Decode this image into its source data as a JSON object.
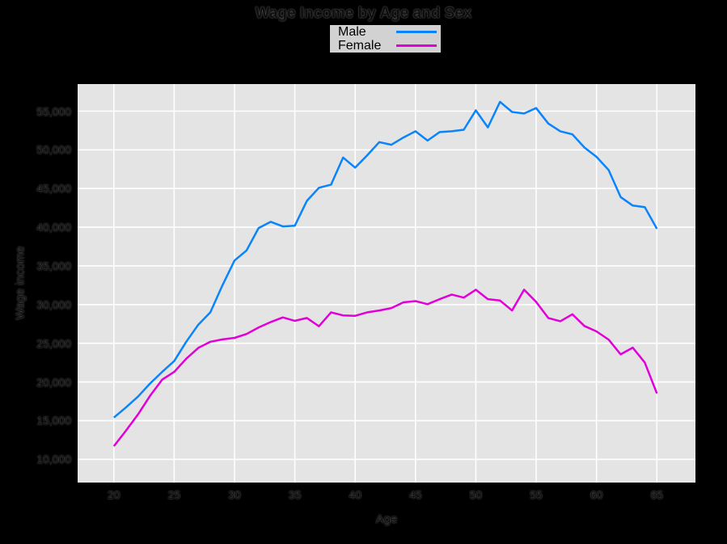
{
  "chart_data": {
    "type": "line",
    "title": "Wage Income by Age and Sex",
    "xlabel": "Age",
    "ylabel": "Wage income",
    "x": [
      20,
      21,
      22,
      23,
      24,
      25,
      26,
      27,
      28,
      29,
      30,
      31,
      32,
      33,
      34,
      35,
      36,
      37,
      38,
      39,
      40,
      41,
      42,
      43,
      44,
      45,
      46,
      47,
      48,
      49,
      50,
      51,
      52,
      53,
      54,
      55,
      56,
      57,
      58,
      59,
      60,
      61,
      62,
      63,
      64,
      65
    ],
    "series": [
      {
        "name": "Male",
        "color": "#0a84fb",
        "values": [
          15400,
          16700,
          18100,
          19800,
          21300,
          22700,
          25200,
          27400,
          29000,
          32500,
          35700,
          37000,
          39900,
          40700,
          40100,
          40200,
          43400,
          45100,
          45500,
          49000,
          47700,
          49300,
          51000,
          50650,
          51600,
          52400,
          51200,
          52300,
          52400,
          52600,
          55100,
          52900,
          56200,
          54900,
          54700,
          55400,
          53400,
          52400,
          52000,
          50300,
          49100,
          47400,
          43900,
          42800,
          42600,
          39800
        ]
      },
      {
        "name": "Female",
        "color": "#e200d8",
        "values": [
          11700,
          13700,
          15800,
          18200,
          20300,
          21300,
          23000,
          24400,
          25200,
          25500,
          25700,
          26200,
          27050,
          27750,
          28340,
          27900,
          28270,
          27200,
          29000,
          28600,
          28550,
          29000,
          29240,
          29550,
          30300,
          30450,
          30050,
          30700,
          31300,
          30900,
          31920,
          30700,
          30520,
          29240,
          31920,
          30350,
          28270,
          27850,
          28750,
          27230,
          26530,
          25480,
          23570,
          24440,
          22520,
          18520
        ]
      }
    ],
    "xlim": [
      17,
      68.2
    ],
    "ylim": [
      7000,
      58500
    ],
    "xticks": [
      20,
      25,
      30,
      35,
      40,
      45,
      50,
      55,
      60,
      65
    ],
    "yticks": [
      10000,
      15000,
      20000,
      25000,
      30000,
      35000,
      40000,
      45000,
      50000,
      55000
    ],
    "ytick_format": "comma",
    "grid": true,
    "legend_position": "top-center",
    "colors": {
      "figure_bg": "#000000",
      "panel_bg": "#e4e4e4",
      "grid": "#ffffff",
      "legend_bg": "#d2d2d2"
    }
  }
}
